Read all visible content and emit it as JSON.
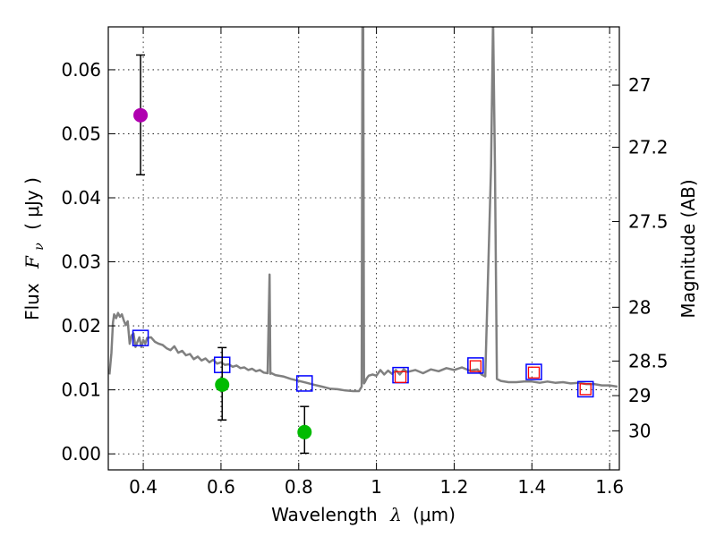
{
  "chart_data": {
    "type": "scatter",
    "xlabel": "Wavelength",
    "xlabel_symbol": "λ",
    "xlabel_unit": "(μm)",
    "ylabel": "Flux",
    "ylabel_symbol": "F",
    "ylabel_subscript": "ν",
    "ylabel_unit": "( μJy )",
    "y2label": "Magnitude (AB)",
    "xlim": [
      0.31,
      1.625
    ],
    "ylim": [
      -0.0025,
      0.0667
    ],
    "grid": true,
    "xticks": [
      0.4,
      0.6,
      0.8,
      1.0,
      1.2,
      1.4,
      1.6
    ],
    "xtick_labels": [
      "0.4",
      "0.6",
      "0.8",
      "1",
      "1.2",
      "1.4",
      "1.6"
    ],
    "yticks": [
      0.0,
      0.01,
      0.02,
      0.03,
      0.04,
      0.05,
      0.06
    ],
    "ytick_labels": [
      "0.00",
      "0.01",
      "0.02",
      "0.03",
      "0.04",
      "0.05",
      "0.06"
    ],
    "y2ticks": [
      {
        "label": "27",
        "flux": 0.0576
      },
      {
        "label": "27.2",
        "flux": 0.0479
      },
      {
        "label": "27.5",
        "flux": 0.0363
      },
      {
        "label": "28",
        "flux": 0.0229
      },
      {
        "label": "28.5",
        "flux": 0.0145
      },
      {
        "label": "29",
        "flux": 0.0091
      },
      {
        "label": "30",
        "flux": 0.0036
      }
    ],
    "model_sed": {
      "name": "SED model",
      "color": "#808080",
      "x": [
        0.313,
        0.318,
        0.322,
        0.325,
        0.33,
        0.335,
        0.34,
        0.345,
        0.35,
        0.355,
        0.36,
        0.365,
        0.37,
        0.375,
        0.38,
        0.385,
        0.39,
        0.395,
        0.4,
        0.405,
        0.41,
        0.42,
        0.43,
        0.44,
        0.45,
        0.46,
        0.47,
        0.48,
        0.49,
        0.5,
        0.51,
        0.52,
        0.53,
        0.54,
        0.55,
        0.56,
        0.57,
        0.58,
        0.59,
        0.6,
        0.61,
        0.62,
        0.63,
        0.64,
        0.65,
        0.66,
        0.67,
        0.68,
        0.69,
        0.7,
        0.71,
        0.72,
        0.725,
        0.727,
        0.73,
        0.74,
        0.76,
        0.78,
        0.8,
        0.82,
        0.84,
        0.86,
        0.88,
        0.9,
        0.92,
        0.94,
        0.955,
        0.962,
        0.964,
        0.966,
        0.968,
        0.97,
        0.975,
        0.98,
        0.99,
        1.0,
        1.01,
        1.02,
        1.03,
        1.04,
        1.05,
        1.06,
        1.07,
        1.08,
        1.1,
        1.12,
        1.14,
        1.16,
        1.18,
        1.2,
        1.22,
        1.24,
        1.26,
        1.27,
        1.28,
        1.295,
        1.3,
        1.305,
        1.31,
        1.32,
        1.34,
        1.36,
        1.38,
        1.4,
        1.42,
        1.44,
        1.46,
        1.48,
        1.5,
        1.52,
        1.54,
        1.56,
        1.58,
        1.6,
        1.62
      ],
      "y": [
        0.0124,
        0.0158,
        0.0205,
        0.0218,
        0.0212,
        0.022,
        0.0214,
        0.0218,
        0.0208,
        0.0201,
        0.0207,
        0.0172,
        0.0185,
        0.0188,
        0.0167,
        0.0175,
        0.0182,
        0.0167,
        0.0178,
        0.0172,
        0.0181,
        0.0182,
        0.0175,
        0.0172,
        0.017,
        0.0165,
        0.0162,
        0.0168,
        0.0158,
        0.0161,
        0.0154,
        0.0156,
        0.0148,
        0.0152,
        0.0146,
        0.0149,
        0.0143,
        0.0147,
        0.0141,
        0.0143,
        0.0139,
        0.014,
        0.0136,
        0.0138,
        0.0134,
        0.0135,
        0.0131,
        0.0133,
        0.0129,
        0.0131,
        0.0127,
        0.0126,
        0.028,
        0.0125,
        0.0126,
        0.0123,
        0.0121,
        0.0117,
        0.0114,
        0.0111,
        0.0108,
        0.0105,
        0.0102,
        0.0101,
        0.0099,
        0.0098,
        0.0098,
        0.0105,
        0.068,
        0.068,
        0.011,
        0.0112,
        0.0118,
        0.0122,
        0.0124,
        0.0122,
        0.0131,
        0.0124,
        0.013,
        0.0125,
        0.0131,
        0.0124,
        0.0132,
        0.0128,
        0.0131,
        0.0126,
        0.0132,
        0.0129,
        0.0134,
        0.0131,
        0.0135,
        0.013,
        0.0132,
        0.0124,
        0.0121,
        0.045,
        0.068,
        0.045,
        0.0117,
        0.0114,
        0.0112,
        0.0112,
        0.0113,
        0.0113,
        0.0111,
        0.0113,
        0.0111,
        0.0112,
        0.011,
        0.0111,
        0.0109,
        0.0109,
        0.0107,
        0.0107,
        0.0105
      ]
    },
    "series": [
      {
        "name": "model photometry (blue squares)",
        "marker": "square",
        "color": "#0000ff",
        "x": [
          0.393,
          0.603,
          0.815,
          1.062,
          1.255,
          1.405,
          1.538
        ],
        "y": [
          0.0181,
          0.0139,
          0.011,
          0.0123,
          0.0138,
          0.0128,
          0.0101
        ]
      },
      {
        "name": "model photometry (red squares)",
        "marker": "square-small",
        "color": "#ff0000",
        "x": [
          1.062,
          1.255,
          1.405,
          1.538
        ],
        "y": [
          0.012,
          0.0137,
          0.0127,
          0.0101
        ]
      },
      {
        "name": "observed (green)",
        "marker": "circle",
        "color": "#00bb00",
        "x": [
          0.603,
          0.815
        ],
        "y": [
          0.0108,
          0.0034
        ],
        "yerr_low": [
          0.0053,
          0.0001
        ],
        "yerr_high": [
          0.0166,
          0.0074
        ]
      },
      {
        "name": "observed (magenta)",
        "marker": "circle",
        "color": "#b000b0",
        "x": [
          0.393
        ],
        "y": [
          0.0529
        ],
        "yerr_low": [
          0.0436
        ],
        "yerr_high": [
          0.0623
        ]
      }
    ]
  }
}
